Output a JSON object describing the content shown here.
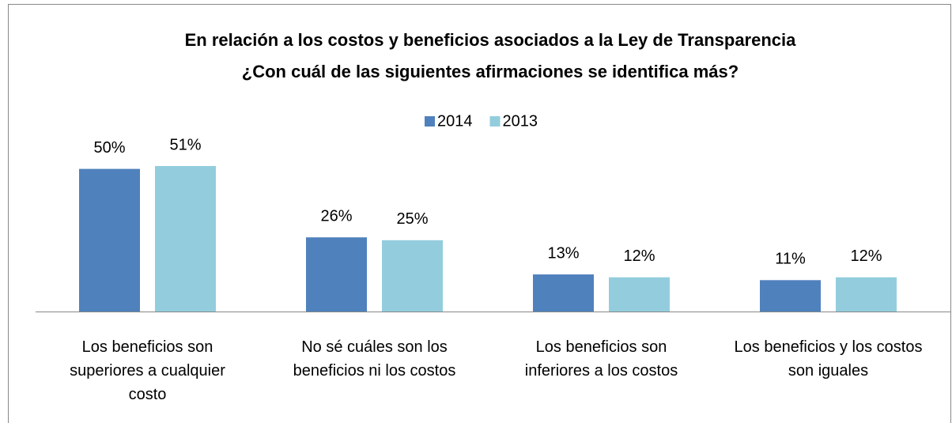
{
  "chart_data": {
    "type": "bar",
    "title": [
      "En relación a los costos y beneficios asociados a la Ley de Transparencia",
      "¿Con cuál de las siguientes afirmaciones se identifica más?"
    ],
    "categories": [
      "Los beneficios son superiores a cualquier costo",
      "No sé cuáles son los beneficios ni los costos",
      "Los beneficios son inferiores a los costos",
      "Los beneficios y los costos son iguales"
    ],
    "series": [
      {
        "name": "2014",
        "color": "#4f81bd",
        "values": [
          50,
          26,
          13,
          11
        ],
        "value_labels": [
          "50%",
          "26%",
          "13%",
          "11%"
        ]
      },
      {
        "name": "2013",
        "color": "#93cddd",
        "values": [
          51,
          25,
          12,
          12
        ],
        "value_labels": [
          "51%",
          "25%",
          "12%",
          "12%"
        ]
      }
    ],
    "legend": "top"
  }
}
